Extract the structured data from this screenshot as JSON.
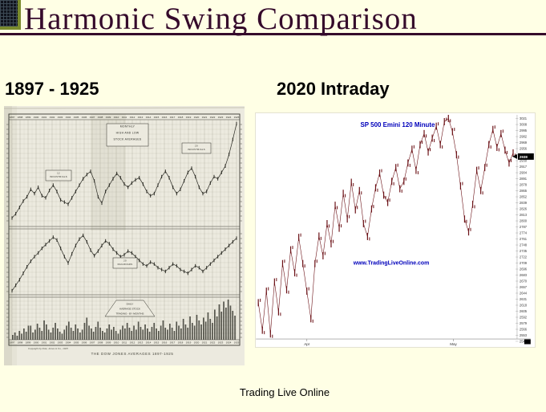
{
  "slide": {
    "title": "Harmonic Swing Comparison",
    "left_section_label": "1897 - 1925",
    "right_section_label": "2020 Intraday",
    "footer": "Trading Live Online"
  },
  "colors": {
    "background": "#FFFFE5",
    "title": "#350A2B",
    "underline": "#350A2B",
    "icon_olive": "#7A8B2D",
    "left_paper": "#ECEADF",
    "left_ink": "#2B2B24",
    "right_bg": "#FFFFFF",
    "right_series": "#6B1116",
    "right_text_blue": "#0000BB"
  },
  "chart_data": [
    {
      "type": "line",
      "title": "THE DOW JONES AVERAGES 1897-1925",
      "copyright": "Copyright by Dow, Jones & Co., 1925",
      "legend_box_lines": [
        "MONTHLY",
        "HIGH AND LOW",
        "STOCK AVERAGES"
      ],
      "x_years": [
        "1897",
        "1898",
        "1899",
        "1900",
        "1901",
        "1902",
        "1903",
        "1904",
        "1905",
        "1906",
        "1907",
        "1908",
        "1909",
        "1910",
        "1911",
        "1912",
        "1913",
        "1914",
        "1915",
        "1916",
        "1917",
        "1918",
        "1919",
        "1920",
        "1921",
        "1922",
        "1923",
        "1924",
        "1925"
      ],
      "grid": true,
      "panels": [
        {
          "name": "industrials",
          "labels": [
            {
              "lines": [
                "12",
                "INDUSTRIALS"
              ]
            },
            {
              "lines": [
                "20",
                "INDUSTRIALS"
              ]
            }
          ],
          "values": [
            8,
            12,
            18,
            24,
            28,
            35,
            31,
            37,
            29,
            27,
            34,
            39,
            33,
            25,
            23,
            21,
            27,
            33,
            39,
            45,
            49,
            52,
            43,
            28,
            22,
            33,
            39,
            45,
            50,
            46,
            40,
            37,
            41,
            44,
            46,
            40,
            33,
            29,
            31,
            39,
            47,
            52,
            46,
            37,
            31,
            35,
            43,
            51,
            55,
            47,
            37,
            31,
            33,
            41,
            47,
            45,
            51,
            57,
            68,
            82,
            97
          ]
        },
        {
          "name": "railroads",
          "labels": [
            {
              "lines": [
                "20",
                "RAILROADS"
              ]
            }
          ],
          "values": [
            6,
            12,
            18,
            25,
            32,
            38,
            43,
            47,
            52,
            56,
            60,
            64,
            61,
            52,
            43,
            36,
            46,
            55,
            62,
            66,
            59,
            50,
            44,
            49,
            55,
            60,
            57,
            51,
            47,
            43,
            45,
            49,
            47,
            43,
            39,
            35,
            33,
            37,
            35,
            31,
            29,
            27,
            31,
            35,
            33,
            29,
            27,
            25,
            29,
            33,
            31,
            27,
            31,
            35,
            39,
            43,
            47,
            51,
            55,
            59,
            63
          ]
        },
        {
          "name": "volume",
          "label_lines": [
            "DAILY",
            "AVERAGE STOCK",
            "TRADING - BY MONTHS"
          ],
          "values": [
            12,
            18,
            10,
            22,
            15,
            28,
            20,
            35,
            35,
            18,
            25,
            40,
            30,
            22,
            48,
            38,
            25,
            18,
            30,
            42,
            28,
            20,
            15,
            25,
            35,
            45,
            30,
            22,
            38,
            28,
            18,
            25,
            42,
            55,
            35,
            28,
            20,
            32,
            45,
            30,
            22,
            18,
            28,
            38,
            25,
            32,
            22,
            15,
            25,
            35,
            28,
            42,
            30,
            22,
            35,
            25,
            45,
            32,
            25,
            38,
            28,
            20,
            32,
            42,
            28,
            22,
            35,
            48,
            30,
            25,
            40,
            30,
            22,
            45,
            35,
            28,
            52,
            38,
            30,
            58,
            42,
            35,
            62,
            48,
            38,
            55,
            45,
            68,
            52,
            42,
            75,
            58,
            88,
            70,
            95,
            80,
            100,
            85,
            72,
            60
          ]
        }
      ]
    },
    {
      "type": "ohlc",
      "title": "SP 500 Emini 120 Minute",
      "watermark": "www.TradingLiveOnline.com",
      "x_ticks": [
        "Apr",
        "May"
      ],
      "y_ticks": [
        "3021",
        "3008",
        "2995",
        "2982",
        "2969",
        "2956",
        "2943",
        "2930",
        "2917",
        "2904",
        "2891",
        "2878",
        "2865",
        "2852",
        "2839",
        "2826",
        "2813",
        "2800",
        "2787",
        "2774",
        "2761",
        "2748",
        "2735",
        "2722",
        "2709",
        "2696",
        "2683",
        "2670",
        "2657",
        "2644",
        "2631",
        "2618",
        "2605",
        "2592",
        "2579",
        "2566",
        "2553",
        "2540"
      ],
      "y_range": [
        2545,
        3021
      ],
      "last_price": "2938",
      "prices": [
        2620,
        2560,
        2645,
        2552,
        2665,
        2600,
        2705,
        2648,
        2735,
        2685,
        2762,
        2705,
        2645,
        2585,
        2705,
        2765,
        2722,
        2792,
        2748,
        2832,
        2782,
        2858,
        2802,
        2882,
        2822,
        2864,
        2792,
        2764,
        2824,
        2870,
        2902,
        2854,
        2838,
        2884,
        2914,
        2868,
        2884,
        2924,
        2954,
        2908,
        2964,
        2988,
        2948,
        2978,
        3004,
        2964,
        3014,
        3021,
        2992,
        2942,
        2874,
        2802,
        2774,
        2834,
        2908,
        2864,
        2914,
        2964,
        2997,
        2958,
        2988,
        2952,
        2924,
        2946
      ]
    }
  ]
}
